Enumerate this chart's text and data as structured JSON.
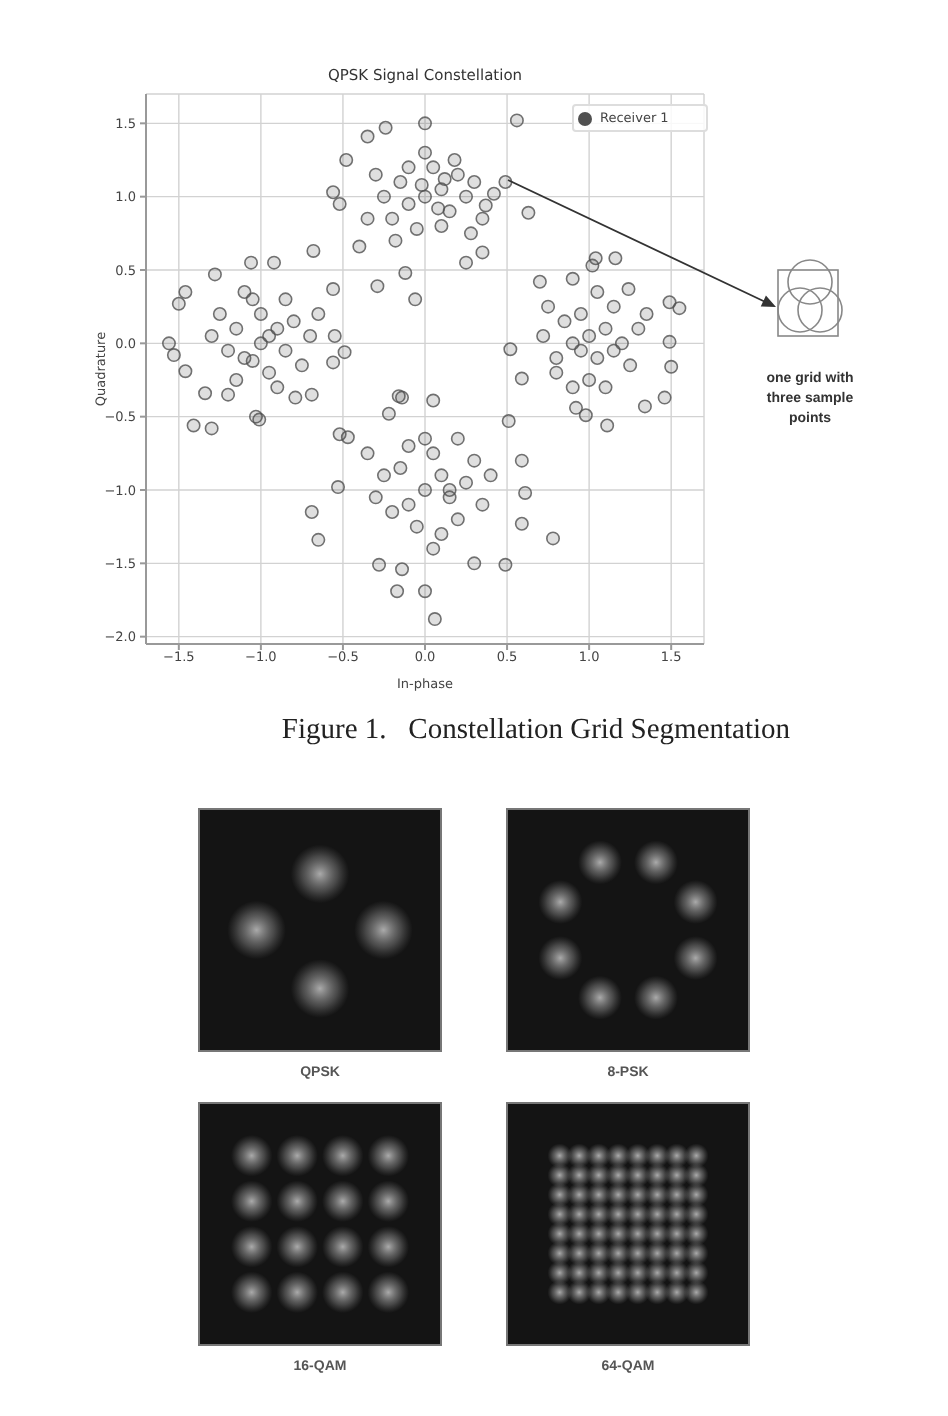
{
  "chart_data": [
    {
      "type": "scatter",
      "title": "QPSK Signal Constellation",
      "xlabel": "In-phase",
      "ylabel": "Quadrature",
      "annotations": [
        "one grid with three sample points",
        "Figure 1.   Constellation Grid Segmentation"
      ],
      "series": [
        {
          "name": "Receiver 1",
          "color": "#505050",
          "x": [
            0.56,
            0.0,
            -0.24,
            -0.35,
            -0.48,
            -0.56,
            -0.52,
            -0.4,
            -0.68,
            -0.29,
            -0.06,
            -0.12,
            0.63,
            0.49,
            0.37,
            0.35,
            0.25,
            0.0,
            0.1,
            -0.1,
            0.15,
            -0.15,
            0.05,
            0.2,
            -0.2,
            0.25,
            -0.25,
            0.1,
            -0.05,
            0.3,
            0.0,
            -0.3,
            0.18,
            -0.1,
            0.35,
            -0.35,
            0.08,
            -0.02,
            0.12,
            0.28,
            -0.18,
            0.42,
            -0.92,
            -1.06,
            -1.28,
            -1.46,
            -1.5,
            -0.56,
            -1.56,
            -1.53,
            -1.46,
            -1.41,
            -1.3,
            -1.34,
            -1.03,
            -1.01,
            -0.79,
            -0.69,
            -0.56,
            -0.49,
            -0.55,
            -1.0,
            -0.9,
            -1.1,
            -0.85,
            -1.15,
            -1.0,
            -0.95,
            -1.2,
            -0.8,
            -1.05,
            -0.75,
            -1.25,
            -0.9,
            -1.15,
            -0.7,
            -1.3,
            -0.85,
            -1.1,
            -0.65,
            -1.2,
            -0.95,
            -1.05,
            -0.52,
            -0.47,
            -0.22,
            -0.14,
            -0.69,
            -0.65,
            -0.53,
            -0.28,
            -0.14,
            -0.17,
            0.0,
            0.06,
            0.3,
            0.49,
            0.78,
            0.59,
            0.61,
            0.59,
            0.51,
            0.05,
            -0.16,
            0.0,
            0.1,
            -0.1,
            0.15,
            -0.15,
            0.05,
            0.2,
            -0.2,
            0.25,
            -0.25,
            0.1,
            -0.05,
            0.3,
            -0.3,
            0.35,
            0.0,
            -0.1,
            0.2,
            0.4,
            -0.35,
            0.05,
            0.15,
            1.04,
            1.16,
            1.02,
            0.7,
            0.9,
            1.24,
            1.49,
            1.55,
            0.52,
            0.59,
            0.92,
            0.98,
            1.11,
            1.34,
            1.46,
            1.5,
            1.49,
            0.72,
            1.0,
            1.1,
            0.9,
            1.05,
            0.95,
            1.2,
            0.8,
            1.15,
            0.85,
            1.25,
            1.0,
            0.75,
            1.3,
            0.9,
            1.1,
            1.05,
            0.8,
            1.35,
            0.95,
            1.15
          ],
          "values": [
            1.52,
            1.5,
            1.47,
            1.41,
            1.25,
            1.03,
            0.95,
            0.66,
            0.63,
            0.39,
            0.3,
            0.48,
            0.89,
            1.1,
            0.94,
            0.62,
            0.55,
            1.0,
            1.05,
            0.95,
            0.9,
            1.1,
            1.2,
            1.15,
            0.85,
            1.0,
            1.0,
            0.8,
            0.78,
            1.1,
            1.3,
            1.15,
            1.25,
            1.2,
            0.85,
            0.85,
            0.92,
            1.08,
            1.12,
            0.75,
            0.7,
            1.02,
            0.55,
            0.55,
            0.47,
            0.35,
            0.27,
            0.37,
            0.0,
            -0.08,
            -0.19,
            -0.56,
            -0.58,
            -0.34,
            -0.5,
            -0.52,
            -0.37,
            -0.35,
            -0.13,
            -0.06,
            0.05,
            0.0,
            0.1,
            -0.1,
            -0.05,
            0.1,
            0.2,
            -0.2,
            -0.05,
            0.15,
            0.3,
            -0.15,
            0.2,
            -0.3,
            -0.25,
            0.05,
            0.05,
            0.3,
            0.35,
            0.2,
            -0.35,
            0.05,
            -0.12,
            -0.62,
            -0.64,
            -0.48,
            -0.37,
            -1.15,
            -1.34,
            -0.98,
            -1.51,
            -1.54,
            -1.69,
            -1.69,
            -1.88,
            -1.5,
            -1.51,
            -1.33,
            -1.23,
            -1.02,
            -0.8,
            -0.53,
            -0.39,
            -0.36,
            -1.0,
            -0.9,
            -1.1,
            -1.05,
            -0.85,
            -0.75,
            -1.2,
            -1.15,
            -0.95,
            -0.9,
            -1.3,
            -1.25,
            -0.8,
            -1.05,
            -1.1,
            -0.65,
            -0.7,
            -0.65,
            -0.9,
            -0.75,
            -1.4,
            -1.0,
            0.58,
            0.58,
            0.53,
            0.42,
            0.44,
            0.37,
            0.28,
            0.24,
            -0.04,
            -0.24,
            -0.44,
            -0.49,
            -0.56,
            -0.43,
            -0.37,
            -0.16,
            0.01,
            0.05,
            0.05,
            0.1,
            0.0,
            -0.1,
            0.2,
            0.0,
            -0.1,
            0.25,
            0.15,
            -0.15,
            -0.25,
            0.25,
            0.1,
            -0.3,
            -0.3,
            0.35,
            -0.2,
            0.2,
            -0.05,
            -0.05
          ]
        }
      ],
      "xlim": [
        -1.7,
        1.7
      ],
      "ylim": [
        -2.05,
        1.7
      ],
      "xticks": [
        {
          "value": -1.5,
          "label": "−1.5"
        },
        {
          "value": -1,
          "label": "−1.0"
        },
        {
          "value": -0.5,
          "label": "−0.5"
        },
        {
          "value": 0,
          "label": "0.0"
        },
        0.5,
        {
          "value": 1,
          "label": "1.0"
        },
        1.5
      ],
      "yticks": [
        {
          "value": -2,
          "label": "−2.0"
        },
        {
          "value": -1.5,
          "label": "−1.5"
        },
        {
          "value": -1,
          "label": "−1.0"
        },
        {
          "value": -0.5,
          "label": "−0.5"
        },
        {
          "value": 0,
          "label": "0.0"
        },
        0.5,
        {
          "value": 1,
          "label": "1.0"
        },
        1.5
      ],
      "grid": true,
      "legend": "top right",
      "marker": "circle"
    },
    {
      "type": "other",
      "annotations": [
        "QPSK",
        "8-PSK",
        "16-QAM",
        "64-QAM"
      ]
    }
  ]
}
